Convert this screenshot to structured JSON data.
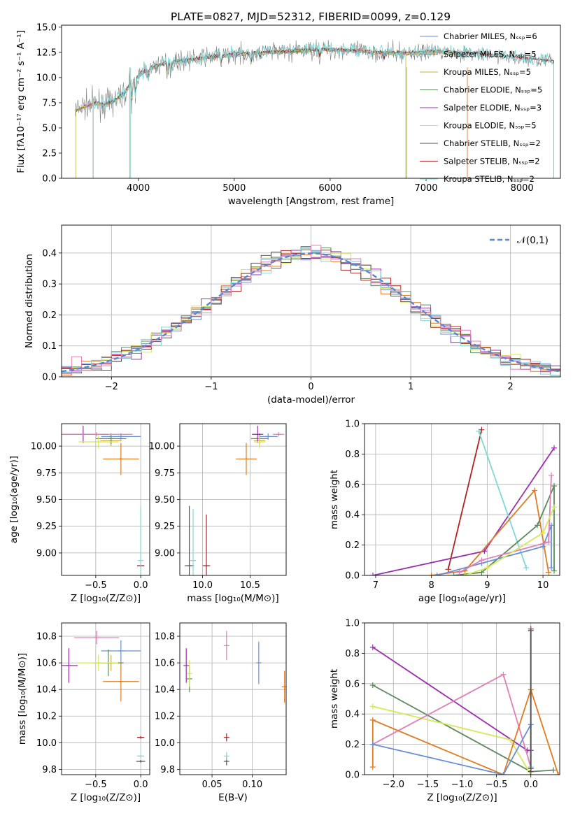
{
  "title": "PLATE=0827, MJD=52312, FIBERID=0099, z=0.129",
  "colors": {
    "chabrier_miles": "#6a8fd6",
    "salpeter_miles": "#e07b22",
    "kroupa_miles": "#d4a83a",
    "chabrier_elodie": "#5e8a5e",
    "salpeter_elodie": "#9b2fb0",
    "kroupa_elodie": "#d4e85a",
    "chabrier_stelib": "#555555",
    "salpeter_stelib": "#b22222",
    "kroupa_stelib": "#7fd8d8",
    "pink": "#e07fb8",
    "data": "#808080"
  },
  "chart_data": [
    {
      "id": "spectrum",
      "type": "line",
      "xlabel": "wavelength [Angstrom, rest frame]",
      "ylabel": "Flux [fλ10⁻¹⁷ erg cm⁻² s⁻¹ A⁻¹]",
      "xlim": [
        3200,
        8400
      ],
      "ylim": [
        0,
        15.2
      ],
      "xticks": [
        "4000",
        "5000",
        "6000",
        "7000",
        "8000"
      ],
      "yticks": [
        "0.0",
        "2.5",
        "5.0",
        "7.5",
        "10.0",
        "12.5",
        "15.0"
      ],
      "legend_location": "right",
      "legend": [
        "Chabrier MILES, Nₛₛₚ=6",
        "Salpeter MILES, Nₛₛₚ=5",
        "Kroupa MILES, Nₛₛₚ=5",
        "Chabrier ELODIE, Nₛₛₚ=5",
        "Salpeter ELODIE, Nₛₛₚ=3",
        "Kroupa ELODIE, Nₛₛₚ=5",
        "Chabrier STELIB, Nₛₛₚ=2",
        "Salpeter STELIB, Nₛₛₚ=2",
        "Kroupa STELIB, Nₛₛₚ=2"
      ],
      "continuum": {
        "x": [
          3350,
          3450,
          3550,
          3650,
          3750,
          3850,
          3950,
          4100,
          4300,
          4500,
          4700,
          5000,
          5300,
          5600,
          5900,
          6200,
          6500,
          6800,
          7100,
          7400,
          7700,
          8000,
          8300
        ],
        "y": [
          6.8,
          7.2,
          7.5,
          7.3,
          7.7,
          8.4,
          9.8,
          10.9,
          11.5,
          11.7,
          12.0,
          12.3,
          12.5,
          12.6,
          12.8,
          12.7,
          12.5,
          12.4,
          12.6,
          12.4,
          12.2,
          11.9,
          11.6
        ]
      }
    },
    {
      "id": "residuals",
      "type": "line",
      "xlabel": "(data-model)/error",
      "ylabel": "Normed distribution",
      "xlim": [
        -2.5,
        2.5
      ],
      "ylim": [
        0,
        0.49
      ],
      "xticks": [
        "−2",
        "−1",
        "0",
        "1",
        "2"
      ],
      "yticks": [
        "0.0",
        "0.1",
        "0.2",
        "0.3",
        "0.4"
      ],
      "legend": [
        "𝒩(0,1)"
      ],
      "legend_location": "upper right",
      "grid": true
    },
    {
      "id": "age_vs_z",
      "type": "scatter",
      "xlabel": "Z [log₁₀(Z/Z⊙)]",
      "ylabel": "age  [log₁₀(age/yr)]",
      "xlim": [
        -0.88,
        0.1
      ],
      "ylim": [
        8.79,
        10.21
      ],
      "xticks": [
        "−0.5",
        "0.0"
      ],
      "yticks": [
        "9.00",
        "9.25",
        "9.50",
        "9.75",
        "10.00"
      ],
      "points": [
        {
          "c": "chabrier_miles",
          "x": -0.22,
          "y": 10.09,
          "xe": 0.22,
          "ye": 0.03
        },
        {
          "c": "salpeter_miles",
          "x": -0.22,
          "y": 9.88,
          "xe": 0.2,
          "ye": 0.15
        },
        {
          "c": "kroupa_miles",
          "x": -0.33,
          "y": 10.05,
          "xe": 0.12,
          "ye": 0.05
        },
        {
          "c": "chabrier_elodie",
          "x": -0.33,
          "y": 10.07,
          "xe": 0.17,
          "ye": 0.05
        },
        {
          "c": "salpeter_elodie",
          "x": -0.64,
          "y": 10.11,
          "xe": 0.28,
          "ye": 0.08
        },
        {
          "c": "kroupa_elodie",
          "x": -0.47,
          "y": 10.04,
          "xe": 0.22,
          "ye": 0.06
        },
        {
          "c": "pink",
          "x": -0.49,
          "y": 10.11,
          "xe": 0.4,
          "ye": 0.02
        },
        {
          "c": "chabrier_stelib",
          "x": 0.0,
          "y": 8.88,
          "xe": 0.04,
          "ye": 0.01
        },
        {
          "c": "salpeter_stelib",
          "x": 0.0,
          "y": 8.88,
          "xe": 0.04,
          "ye": 0.01
        },
        {
          "c": "kroupa_stelib",
          "x": 0.0,
          "y": 8.93,
          "xe": 0.03,
          "ye": 0.5
        }
      ]
    },
    {
      "id": "age_vs_mass",
      "type": "scatter",
      "xlabel": "mass [log₁₀(M/M⊙)]",
      "ylabel": "",
      "xlim": [
        9.76,
        10.88
      ],
      "ylim": [
        8.79,
        10.21
      ],
      "xticks": [
        "10.0",
        "10.5"
      ],
      "yticks": [
        "9.00",
        "9.25",
        "9.50",
        "9.75",
        "10.00"
      ],
      "points": [
        {
          "c": "chabrier_miles",
          "x": 10.69,
          "y": 10.09,
          "xe": 0.1,
          "ye": 0.03
        },
        {
          "c": "salpeter_miles",
          "x": 10.46,
          "y": 9.88,
          "xe": 0.11,
          "ye": 0.15
        },
        {
          "c": "kroupa_miles",
          "x": 10.6,
          "y": 10.05,
          "xe": 0.06,
          "ye": 0.05
        },
        {
          "c": "chabrier_elodie",
          "x": 10.6,
          "y": 10.07,
          "xe": 0.09,
          "ye": 0.05
        },
        {
          "c": "salpeter_elodie",
          "x": 10.58,
          "y": 10.11,
          "xe": 0.06,
          "ye": 0.08
        },
        {
          "c": "kroupa_elodie",
          "x": 10.6,
          "y": 10.04,
          "xe": 0.06,
          "ye": 0.06
        },
        {
          "c": "pink",
          "x": 10.8,
          "y": 10.11,
          "xe": 0.06,
          "ye": 0.02
        },
        {
          "c": "chabrier_stelib",
          "x": 9.86,
          "y": 8.88,
          "xe": 0.05,
          "ye": 0.56
        },
        {
          "c": "salpeter_stelib",
          "x": 10.04,
          "y": 8.88,
          "xe": 0.04,
          "ye": 0.48
        },
        {
          "c": "kroupa_stelib",
          "x": 9.9,
          "y": 8.93,
          "xe": 0.03,
          "ye": 0.48
        }
      ]
    },
    {
      "id": "weight_vs_age",
      "type": "line",
      "xlabel": "age  [log₁₀(age/yr)]",
      "ylabel": "mass weight",
      "xlim": [
        6.8,
        10.3
      ],
      "ylim": [
        0,
        1.0
      ],
      "xticks": [
        "7",
        "8",
        "9",
        "10"
      ],
      "yticks": [
        "0.0",
        "0.2",
        "0.4",
        "0.6",
        "0.8",
        "1.0"
      ],
      "series": [
        {
          "c": "salpeter_elodie",
          "x": [
            6.95,
            8.95,
            10.2
          ],
          "y": [
            0.0,
            0.16,
            0.84
          ]
        },
        {
          "c": "salpeter_stelib",
          "x": [
            8.3,
            8.9
          ],
          "y": [
            0.04,
            0.96
          ]
        },
        {
          "c": "kroupa_stelib",
          "x": [
            8.85,
            9.7
          ],
          "y": [
            0.95,
            0.05
          ]
        },
        {
          "c": "salpeter_miles",
          "x": [
            8.0,
            8.6,
            9.85,
            10.1
          ],
          "y": [
            0.0,
            0.03,
            0.56,
            0.02
          ]
        },
        {
          "c": "chabrier_elodie",
          "x": [
            8.4,
            8.9,
            9.9,
            10.2,
            10.2
          ],
          "y": [
            0.0,
            0.02,
            0.33,
            0.59,
            0.03
          ]
        },
        {
          "c": "chabrier_miles",
          "x": [
            8.1,
            8.9,
            10.0,
            10.15,
            10.15
          ],
          "y": [
            0.0,
            0.08,
            0.19,
            0.33,
            0.05
          ]
        },
        {
          "c": "pink",
          "x": [
            8.5,
            8.9,
            10.1,
            10.15
          ],
          "y": [
            0.02,
            0.1,
            0.22,
            0.66
          ]
        },
        {
          "c": "kroupa_elodie",
          "x": [
            8.6,
            9.0,
            10.0,
            10.2
          ],
          "y": [
            0.0,
            0.05,
            0.28,
            0.45
          ]
        }
      ]
    },
    {
      "id": "mass_vs_z",
      "type": "scatter",
      "xlabel": "Z [log₁₀(Z/Z⊙)]",
      "ylabel": "mass [log₁₀(M/M⊙)]",
      "xlim": [
        -0.88,
        0.1
      ],
      "ylim": [
        9.76,
        10.9
      ],
      "xticks": [
        "−0.5",
        "0.0"
      ],
      "yticks": [
        "9.8",
        "10.0",
        "10.2",
        "10.4",
        "10.6",
        "10.8"
      ],
      "points": [
        {
          "c": "chabrier_miles",
          "x": -0.22,
          "y": 10.69,
          "xe": 0.22,
          "ye": 0.08
        },
        {
          "c": "salpeter_miles",
          "x": -0.22,
          "y": 10.46,
          "xe": 0.2,
          "ye": 0.15
        },
        {
          "c": "kroupa_miles",
          "x": -0.33,
          "y": 10.6,
          "xe": 0.12,
          "ye": 0.06
        },
        {
          "c": "chabrier_elodie",
          "x": -0.36,
          "y": 10.6,
          "xe": 0.17,
          "ye": 0.1
        },
        {
          "c": "salpeter_elodie",
          "x": -0.8,
          "y": 10.58,
          "xe": 0.1,
          "ye": 0.13
        },
        {
          "c": "kroupa_elodie",
          "x": -0.47,
          "y": 10.6,
          "xe": 0.22,
          "ye": 0.06
        },
        {
          "c": "pink",
          "x": -0.49,
          "y": 10.79,
          "xe": 0.25,
          "ye": 0.05
        },
        {
          "c": "chabrier_stelib",
          "x": 0.0,
          "y": 9.86,
          "xe": 0.05,
          "ye": 0.01
        },
        {
          "c": "salpeter_stelib",
          "x": 0.0,
          "y": 10.04,
          "xe": 0.04,
          "ye": 0.01
        },
        {
          "c": "kroupa_stelib",
          "x": 0.0,
          "y": 9.9,
          "xe": 0.04,
          "ye": 0.01
        }
      ]
    },
    {
      "id": "mass_vs_ebv",
      "type": "scatter",
      "xlabel": "E(B-V)",
      "ylabel": "",
      "xlim": [
        0.01,
        0.142
      ],
      "ylim": [
        9.76,
        10.9
      ],
      "xticks": [
        "0.05",
        "0.10"
      ],
      "yticks": [
        "9.8",
        "10.0",
        "10.2",
        "10.4",
        "10.6",
        "10.8"
      ],
      "points": [
        {
          "c": "chabrier_miles",
          "x": 0.108,
          "y": 10.6,
          "xe": 0,
          "ye": 0.16
        },
        {
          "c": "salpeter_miles",
          "x": 0.14,
          "y": 10.42,
          "xe": 0,
          "ye": 0.12
        },
        {
          "c": "chabrier_elodie",
          "x": 0.022,
          "y": 10.48,
          "xe": 0,
          "ye": 0.1
        },
        {
          "c": "salpeter_elodie",
          "x": 0.018,
          "y": 10.58,
          "xe": 0,
          "ye": 0.13
        },
        {
          "c": "kroupa_elodie",
          "x": 0.022,
          "y": 10.52,
          "xe": 0,
          "ye": 0.1
        },
        {
          "c": "pink",
          "x": 0.068,
          "y": 10.73,
          "xe": 0,
          "ye": 0.11
        },
        {
          "c": "chabrier_stelib",
          "x": 0.068,
          "y": 9.86,
          "xe": 0,
          "ye": 0.03
        },
        {
          "c": "salpeter_stelib",
          "x": 0.068,
          "y": 10.04,
          "xe": 0,
          "ye": 0.03
        },
        {
          "c": "kroupa_stelib",
          "x": 0.068,
          "y": 9.9,
          "xe": 0,
          "ye": 0.03
        }
      ]
    },
    {
      "id": "weight_vs_z",
      "type": "line",
      "xlabel": "Z [log₁₀(Z/Z⊙)]",
      "ylabel": "mass weight",
      "xlim": [
        -2.42,
        0.42
      ],
      "ylim": [
        0,
        1.0
      ],
      "xticks": [
        "−2.0",
        "−1.5",
        "−1.0",
        "−0.5",
        "0.0"
      ],
      "yticks": [
        "0.0",
        "0.2",
        "0.4",
        "0.6",
        "0.8",
        "1.0"
      ],
      "series": [
        {
          "c": "salpeter_elodie",
          "x": [
            -2.3,
            -0.05,
            0.0
          ],
          "y": [
            0.84,
            0.16,
            0.16
          ]
        },
        {
          "c": "chabrier_elodie",
          "x": [
            -2.3,
            0.0,
            0.33
          ],
          "y": [
            0.59,
            0.02,
            0.03
          ]
        },
        {
          "c": "kroupa_elodie",
          "x": [
            -2.3,
            -0.3,
            0.0
          ],
          "y": [
            0.45,
            0.23,
            0.0
          ]
        },
        {
          "c": "pink",
          "x": [
            -2.3,
            -0.4,
            0.0
          ],
          "y": [
            0.2,
            0.66,
            0.05
          ]
        },
        {
          "c": "salpeter_miles",
          "x": [
            -2.3,
            -2.3,
            -0.4,
            0.0,
            0.4
          ],
          "y": [
            0.05,
            0.36,
            0.0,
            0.56,
            0.0
          ]
        },
        {
          "c": "chabrier_miles",
          "x": [
            -2.3,
            -0.4,
            0.0,
            0.0
          ],
          "y": [
            0.2,
            0.0,
            0.33,
            0.05
          ]
        },
        {
          "c": "salpeter_stelib",
          "x": [
            0.0,
            0.0
          ],
          "y": [
            0.04,
            0.96
          ]
        },
        {
          "c": "kroupa_stelib",
          "x": [
            0.0,
            0.0
          ],
          "y": [
            0.05,
            0.95
          ]
        },
        {
          "c": "chabrier_stelib",
          "x": [
            0.0,
            0.0
          ],
          "y": [
            0.02,
            0.95
          ]
        }
      ]
    }
  ]
}
